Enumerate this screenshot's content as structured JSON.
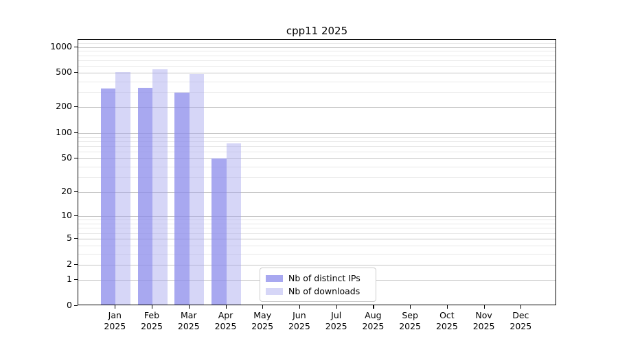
{
  "chart_data": {
    "type": "bar",
    "title": "cpp11 2025",
    "categories": [
      "Jan",
      "Feb",
      "Mar",
      "Apr",
      "May",
      "Jun",
      "Jul",
      "Aug",
      "Sep",
      "Oct",
      "Nov",
      "Dec"
    ],
    "year_label": "2025",
    "series": [
      {
        "name": "Nb of distinct IPs",
        "color": "#a8a8f0",
        "color_rgba": "rgba(139,139,235,0.75)",
        "values": [
          320,
          322,
          287,
          48,
          null,
          null,
          null,
          null,
          null,
          null,
          null,
          null
        ]
      },
      {
        "name": "Nb of downloads",
        "color": "#d6d6f7",
        "color_rgba": "rgba(164,164,237,0.45)",
        "values": [
          490,
          527,
          472,
          73,
          null,
          null,
          null,
          null,
          null,
          null,
          null,
          null
        ]
      }
    ],
    "y_scale": "log1p",
    "y_ticks": [
      0,
      1,
      2,
      5,
      10,
      20,
      50,
      100,
      200,
      500,
      1000
    ],
    "y_minor_gridlines": [
      3,
      4,
      6,
      7,
      8,
      9,
      30,
      40,
      60,
      70,
      80,
      90,
      300,
      400,
      600,
      700,
      800,
      900,
      1100
    ],
    "ylim": [
      0,
      1212
    ],
    "xlabel": "",
    "ylabel": "",
    "grid": true,
    "legend_position": "lower center"
  }
}
